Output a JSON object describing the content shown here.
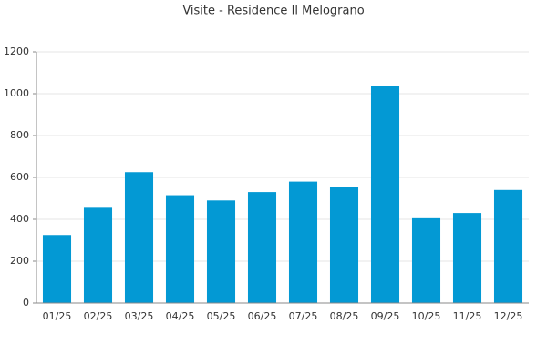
{
  "chart_data": {
    "type": "bar",
    "title": "Visite - Residence Il Melograno",
    "categories": [
      "01/25",
      "02/25",
      "03/25",
      "04/25",
      "05/25",
      "06/25",
      "07/25",
      "08/25",
      "09/25",
      "10/25",
      "11/25",
      "12/25"
    ],
    "values": [
      325,
      455,
      625,
      515,
      490,
      530,
      580,
      555,
      1035,
      405,
      430,
      540
    ],
    "color": "#0399d4",
    "ylim": [
      0,
      1200
    ],
    "yticks": [
      0,
      200,
      400,
      600,
      800,
      1000,
      1200
    ],
    "grid": true
  }
}
